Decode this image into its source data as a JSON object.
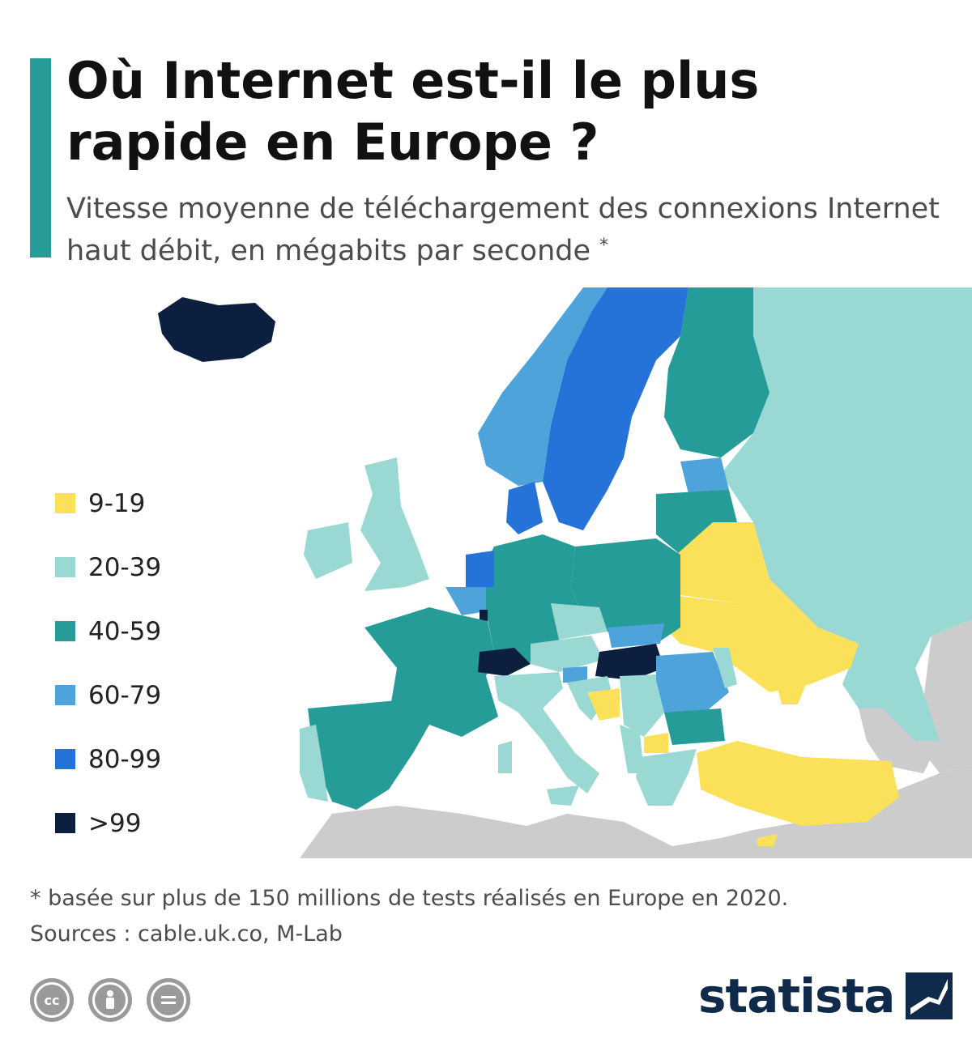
{
  "header": {
    "title": "Où Internet est-il le plus rapide en Europe ?",
    "subtitle": "Vitesse moyenne de téléchargement des connexions Internet haut débit, en mégabits par seconde",
    "subtitle_marker": "*"
  },
  "legend": [
    {
      "label": "9-19",
      "color": "#fbe15a"
    },
    {
      "label": "20-39",
      "color": "#9ad8d4"
    },
    {
      "label": "40-59",
      "color": "#269c98"
    },
    {
      "label": "60-79",
      "color": "#4ea3da"
    },
    {
      "label": "80-99",
      "color": "#2573d9"
    },
    {
      "label": ">99",
      "color": "#0c1f3f"
    }
  ],
  "map": {
    "no_data_color": "#cccccc",
    "regions": [
      {
        "country": "Islande",
        "class": ">99"
      },
      {
        "country": "Norvège",
        "class": "60-79"
      },
      {
        "country": "Suède",
        "class": "80-99"
      },
      {
        "country": "Finlande",
        "class": "40-59"
      },
      {
        "country": "Russie",
        "class": "20-39"
      },
      {
        "country": "Estonie",
        "class": "60-79"
      },
      {
        "country": "Lettonie",
        "class": "40-59"
      },
      {
        "country": "Lituanie",
        "class": "40-59"
      },
      {
        "country": "Biélorussie",
        "class": "9-19"
      },
      {
        "country": "Ukraine",
        "class": "9-19"
      },
      {
        "country": "Pologne",
        "class": "40-59"
      },
      {
        "country": "Allemagne",
        "class": "40-59"
      },
      {
        "country": "Danemark",
        "class": "80-99"
      },
      {
        "country": "Pays-Bas",
        "class": "80-99"
      },
      {
        "country": "Belgique",
        "class": "60-79"
      },
      {
        "country": "Luxembourg",
        "class": ">99"
      },
      {
        "country": "France",
        "class": "40-59"
      },
      {
        "country": "Suisse",
        "class": ">99"
      },
      {
        "country": "Royaume-Uni",
        "class": "20-39"
      },
      {
        "country": "Irlande",
        "class": "20-39"
      },
      {
        "country": "Espagne",
        "class": "40-59"
      },
      {
        "country": "Portugal",
        "class": "20-39"
      },
      {
        "country": "Italie",
        "class": "20-39"
      },
      {
        "country": "Autriche",
        "class": "20-39"
      },
      {
        "country": "République tchèque",
        "class": "20-39"
      },
      {
        "country": "Slovaquie",
        "class": "60-79"
      },
      {
        "country": "Hongrie",
        "class": ">99"
      },
      {
        "country": "Slovénie",
        "class": "60-79"
      },
      {
        "country": "Croatie",
        "class": "20-39"
      },
      {
        "country": "Bosnie-Herzégovine",
        "class": "9-19"
      },
      {
        "country": "Serbie",
        "class": "20-39"
      },
      {
        "country": "Monténégro",
        "class": "20-39"
      },
      {
        "country": "Macédoine du Nord",
        "class": "9-19"
      },
      {
        "country": "Albanie",
        "class": "20-39"
      },
      {
        "country": "Roumanie",
        "class": "60-79"
      },
      {
        "country": "Moldavie",
        "class": "20-39"
      },
      {
        "country": "Bulgarie",
        "class": "40-59"
      },
      {
        "country": "Grèce",
        "class": "20-39"
      },
      {
        "country": "Turquie",
        "class": "9-19"
      },
      {
        "country": "Chypre",
        "class": "9-19"
      },
      {
        "country": "Crimée",
        "class": "9-19"
      },
      {
        "country": "Malte",
        "class": "20-39"
      }
    ]
  },
  "footer": {
    "note": "* basée sur plus de 150 millions de tests réalisés en Europe en 2020.",
    "sources": "Sources : cable.uk.co, M-Lab",
    "brand": "statista"
  },
  "icons": [
    "cc-icon",
    "attribution-icon",
    "no-derivatives-icon",
    "statista-logo-icon"
  ]
}
